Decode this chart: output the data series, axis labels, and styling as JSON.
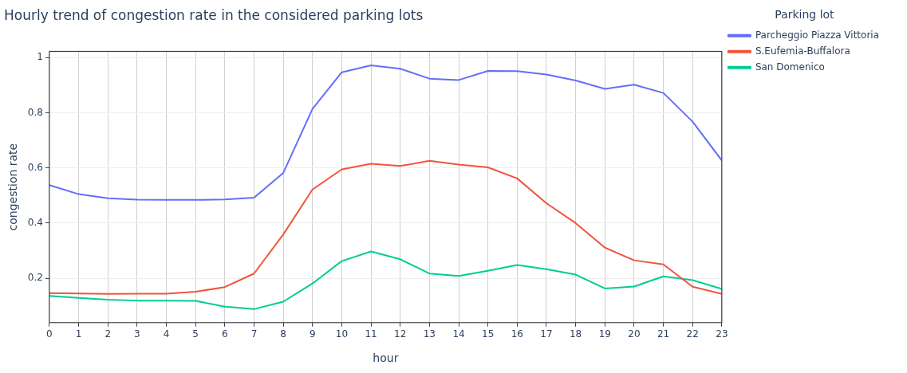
{
  "chart_data": {
    "type": "line",
    "title": "Hourly trend of congestion rate in the considered parking lots",
    "xlabel": "hour",
    "ylabel": "congestion rate",
    "legend_title": "Parking lot",
    "legend": "top right",
    "grid": true,
    "marker": "none",
    "line_style": "solid",
    "x": [
      0,
      1,
      2,
      3,
      4,
      5,
      6,
      7,
      8,
      9,
      10,
      11,
      12,
      13,
      14,
      15,
      16,
      17,
      18,
      19,
      20,
      21,
      22,
      23
    ],
    "xlim": [
      0,
      23
    ],
    "xticks": [
      0,
      1,
      2,
      3,
      4,
      5,
      6,
      7,
      8,
      9,
      10,
      11,
      12,
      13,
      14,
      15,
      16,
      17,
      18,
      19,
      20,
      21,
      22,
      23
    ],
    "ylim": [
      0.039,
      1.023
    ],
    "yticks": [
      0.2,
      0.4,
      0.6,
      0.8,
      1
    ],
    "series": [
      {
        "name": "Parcheggio Piazza Vittoria",
        "color": "#636efa",
        "values": [
          0.538,
          0.505,
          0.49,
          0.485,
          0.484,
          0.484,
          0.486,
          0.492,
          0.582,
          0.814,
          0.947,
          0.972,
          0.96,
          0.924,
          0.919,
          0.952,
          0.951,
          0.939,
          0.917,
          0.887,
          0.902,
          0.872,
          0.768,
          0.627
        ]
      },
      {
        "name": "S.Eufemia-Buffalora",
        "color": "#ef553b",
        "values": [
          0.146,
          0.145,
          0.143,
          0.144,
          0.144,
          0.151,
          0.168,
          0.217,
          0.359,
          0.522,
          0.595,
          0.615,
          0.607,
          0.626,
          0.612,
          0.602,
          0.562,
          0.472,
          0.4,
          0.311,
          0.265,
          0.25,
          0.169,
          0.143
        ]
      },
      {
        "name": "San Domenico",
        "color": "#00cc96",
        "values": [
          0.136,
          0.129,
          0.122,
          0.119,
          0.119,
          0.118,
          0.097,
          0.088,
          0.115,
          0.181,
          0.262,
          0.297,
          0.269,
          0.217,
          0.208,
          0.227,
          0.248,
          0.233,
          0.213,
          0.163,
          0.17,
          0.207,
          0.193,
          0.161
        ]
      }
    ]
  }
}
